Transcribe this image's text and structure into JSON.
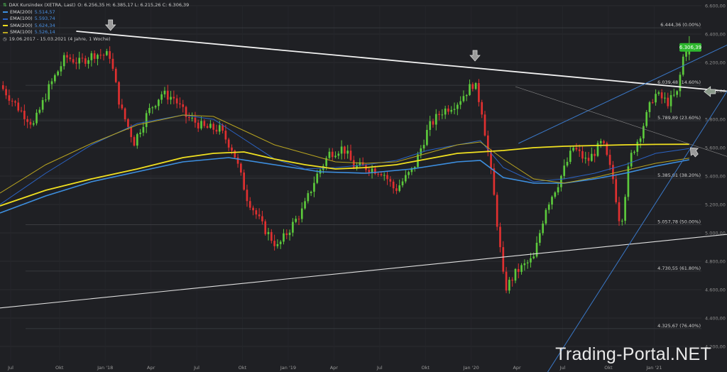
{
  "header": {
    "instrument": "DAX Kursindex (XETRA, Last)",
    "ohlc": "O: 6.256,35  H: 6.385,17  L: 6.215,26  C: 6.306,39",
    "range": "19.06.2017 - 15.03.2021 (4 Jahre, 1 Woche)"
  },
  "legend": [
    {
      "label": "EMA(200)",
      "value": "5.514,57",
      "color": "#3d8fe0"
    },
    {
      "label": "EMA(100)",
      "value": "5.593,74",
      "color": "#2b63c4"
    },
    {
      "label": "SMA(200)",
      "value": "5.624,34",
      "color": "#f0e020"
    },
    {
      "label": "SMA(100)",
      "value": "5.526,14",
      "color": "#b8a420"
    }
  ],
  "watermark": "Trading-Portal.NET",
  "colors": {
    "background": "#1f2024",
    "up": "#5cc93c",
    "down": "#e03030",
    "last_price_badge": "#2eb82e"
  },
  "chart_data": {
    "type": "candlestick",
    "title": "DAX Kursindex (XETRA, Last)",
    "ylim": [
      4100,
      6600
    ],
    "y_ticks": [
      6600,
      6400,
      6200,
      6000,
      5800,
      5600,
      5400,
      5200,
      5000,
      4800,
      4600,
      4400,
      4200
    ],
    "y_tick_labels": [
      "6.600,00",
      "6.400,00",
      "6.200,00",
      "6.000,00",
      "5.800,00",
      "5.600,00",
      "5.400,00",
      "5.200,00",
      "5.000,00",
      "4.800,00",
      "4.600,00",
      "4.400,00",
      "4.200,00"
    ],
    "x_ticks": [
      {
        "label": "Jul",
        "t": 0.7
      },
      {
        "label": "Okt",
        "t": 3.9
      },
      {
        "label": "Jan '18",
        "t": 6.9
      },
      {
        "label": "Apr",
        "t": 9.9
      },
      {
        "label": "Jul",
        "t": 12.9
      },
      {
        "label": "Okt",
        "t": 15.9
      },
      {
        "label": "Jan '19",
        "t": 18.9
      },
      {
        "label": "Apr",
        "t": 21.9
      },
      {
        "label": "Jul",
        "t": 24.9
      },
      {
        "label": "Okt",
        "t": 27.9
      },
      {
        "label": "Jan '20",
        "t": 30.9
      },
      {
        "label": "Apr",
        "t": 33.9
      },
      {
        "label": "Jul",
        "t": 36.9
      },
      {
        "label": "Okt",
        "t": 39.9
      },
      {
        "label": "Jan '21",
        "t": 42.9
      }
    ],
    "x_range": [
      0,
      46
    ],
    "anchors": [
      [
        0,
        6040
      ],
      [
        1.2,
        5880
      ],
      [
        2.2,
        5760
      ],
      [
        3.2,
        6020
      ],
      [
        4.3,
        6240
      ],
      [
        5.2,
        6200
      ],
      [
        6.2,
        6260
      ],
      [
        7.2,
        6250
      ],
      [
        7.9,
        5880
      ],
      [
        8.8,
        5640
      ],
      [
        9.7,
        5850
      ],
      [
        10.6,
        5980
      ],
      [
        11.4,
        5950
      ],
      [
        12.2,
        5820
      ],
      [
        13.4,
        5740
      ],
      [
        14.4,
        5730
      ],
      [
        15.3,
        5580
      ],
      [
        16.2,
        5250
      ],
      [
        17.2,
        5050
      ],
      [
        18.2,
        4900
      ],
      [
        19.2,
        5060
      ],
      [
        19.9,
        5170
      ],
      [
        20.7,
        5390
      ],
      [
        21.6,
        5560
      ],
      [
        22.5,
        5600
      ],
      [
        23.2,
        5470
      ],
      [
        24.1,
        5460
      ],
      [
        25.1,
        5430
      ],
      [
        25.9,
        5300
      ],
      [
        27.1,
        5450
      ],
      [
        28.1,
        5740
      ],
      [
        28.9,
        5850
      ],
      [
        30.0,
        5920
      ],
      [
        31.1,
        6060
      ],
      [
        31.6,
        5860
      ],
      [
        32.3,
        5350
      ],
      [
        33.1,
        4600
      ],
      [
        33.9,
        4730
      ],
      [
        35.0,
        4820
      ],
      [
        35.8,
        5180
      ],
      [
        36.6,
        5350
      ],
      [
        37.6,
        5600
      ],
      [
        38.5,
        5500
      ],
      [
        39.5,
        5640
      ],
      [
        40.2,
        5380
      ],
      [
        40.7,
        5040
      ],
      [
        41.3,
        5520
      ],
      [
        42.0,
        5700
      ],
      [
        42.9,
        5980
      ],
      [
        43.8,
        5920
      ],
      [
        44.4,
        5980
      ],
      [
        44.9,
        6300
      ],
      [
        45.2,
        6310
      ]
    ],
    "close": 6306.39,
    "open": 6256.35,
    "high": 6385.17,
    "low": 6215.26,
    "series": [
      {
        "name": "EMA(200)",
        "color": "#3d8fe0",
        "width": 1.6,
        "value": 5514.57,
        "points": [
          [
            0,
            5140
          ],
          [
            3,
            5260
          ],
          [
            6,
            5360
          ],
          [
            9,
            5430
          ],
          [
            12,
            5500
          ],
          [
            15,
            5530
          ],
          [
            18,
            5480
          ],
          [
            21,
            5430
          ],
          [
            24,
            5420
          ],
          [
            27,
            5450
          ],
          [
            30,
            5500
          ],
          [
            31.5,
            5510
          ],
          [
            33,
            5390
          ],
          [
            35,
            5350
          ],
          [
            37,
            5350
          ],
          [
            39,
            5380
          ],
          [
            41,
            5420
          ],
          [
            43,
            5470
          ],
          [
            45.2,
            5515
          ]
        ]
      },
      {
        "name": "EMA(100)",
        "color": "#2b63c4",
        "width": 1.0,
        "value": 5593.74,
        "points": [
          [
            0,
            5200
          ],
          [
            3,
            5420
          ],
          [
            6,
            5620
          ],
          [
            9,
            5770
          ],
          [
            12,
            5830
          ],
          [
            14,
            5800
          ],
          [
            16,
            5660
          ],
          [
            18,
            5520
          ],
          [
            20,
            5450
          ],
          [
            22,
            5460
          ],
          [
            24,
            5480
          ],
          [
            26,
            5510
          ],
          [
            28,
            5580
          ],
          [
            30,
            5620
          ],
          [
            31.5,
            5650
          ],
          [
            33,
            5460
          ],
          [
            35,
            5360
          ],
          [
            37,
            5380
          ],
          [
            39,
            5420
          ],
          [
            41,
            5480
          ],
          [
            43,
            5560
          ],
          [
            45.2,
            5594
          ]
        ]
      },
      {
        "name": "SMA(200)",
        "color": "#f0e020",
        "width": 1.8,
        "value": 5624.34,
        "points": [
          [
            0,
            5190
          ],
          [
            3,
            5300
          ],
          [
            6,
            5380
          ],
          [
            9,
            5450
          ],
          [
            12,
            5530
          ],
          [
            14,
            5560
          ],
          [
            16,
            5570
          ],
          [
            18,
            5520
          ],
          [
            20,
            5480
          ],
          [
            22,
            5450
          ],
          [
            24,
            5460
          ],
          [
            26,
            5480
          ],
          [
            28,
            5520
          ],
          [
            30,
            5560
          ],
          [
            31.5,
            5570
          ],
          [
            33,
            5580
          ],
          [
            35,
            5600
          ],
          [
            37,
            5610
          ],
          [
            39,
            5615
          ],
          [
            41,
            5620
          ],
          [
            43,
            5623
          ],
          [
            45.2,
            5624
          ]
        ]
      },
      {
        "name": "SMA(100)",
        "color": "#b8a420",
        "width": 1.0,
        "value": 5526.14,
        "points": [
          [
            0,
            5280
          ],
          [
            3,
            5480
          ],
          [
            6,
            5630
          ],
          [
            9,
            5760
          ],
          [
            12,
            5830
          ],
          [
            14,
            5820
          ],
          [
            16,
            5720
          ],
          [
            18,
            5620
          ],
          [
            20,
            5560
          ],
          [
            22,
            5500
          ],
          [
            24,
            5490
          ],
          [
            26,
            5500
          ],
          [
            28,
            5560
          ],
          [
            30,
            5620
          ],
          [
            31.5,
            5640
          ],
          [
            33,
            5520
          ],
          [
            35,
            5380
          ],
          [
            37,
            5350
          ],
          [
            39,
            5390
          ],
          [
            41,
            5440
          ],
          [
            43,
            5490
          ],
          [
            45.2,
            5526
          ]
        ]
      }
    ],
    "fib_levels": [
      {
        "value": 6444.36,
        "label": "6.444,36 (0.00%)"
      },
      {
        "value": 6039.48,
        "label": "6.039,48 (14.60%)"
      },
      {
        "value": 5789.89,
        "label": "5.789,89 (23.60%)"
      },
      {
        "value": 5385.01,
        "label": "5.385,01 (38.20%)"
      },
      {
        "value": 5057.78,
        "label": "5.057,78 (50.00%)"
      },
      {
        "value": 4730.55,
        "label": "4.730,55 (61.80%)"
      },
      {
        "value": 4325.67,
        "label": "4.325,67 (76.40%)"
      }
    ],
    "last_price": {
      "value": 6306.39,
      "label": "6.306,39"
    },
    "trendlines": [
      {
        "name": "resistance-trendline",
        "from": [
          5.0,
          6420
        ],
        "to": [
          54.5,
          5930
        ],
        "color": "#f2f2f2",
        "width": 1.8
      },
      {
        "name": "long-term-support-trendline",
        "from": [
          -1.0,
          4460
        ],
        "to": [
          59.7,
          5120
        ],
        "color": "#e0e0e0",
        "width": 1.1
      },
      {
        "name": "upper-channel-line",
        "from": [
          34.0,
          5630
        ],
        "to": [
          49.8,
          6430
        ],
        "color": "#3a78c8",
        "width": 1.0
      },
      {
        "name": "recovery-trendline",
        "from": [
          35.8,
          4000
        ],
        "to": [
          49.0,
          6220
        ],
        "color": "#3a78c8",
        "width": 1.0
      },
      {
        "name": "declining-trendline",
        "from": [
          33.8,
          6030
        ],
        "to": [
          59.5,
          5120
        ],
        "color": "#8a8a8a",
        "width": 0.6
      }
    ],
    "markers": [
      {
        "name": "top-arrow-2018",
        "t": 7.25,
        "value": 6455,
        "dir": "down"
      },
      {
        "name": "top-arrow-2020",
        "t": 31.15,
        "value": 6240,
        "dir": "down"
      },
      {
        "name": "resistance-test-arrow",
        "t": 46.5,
        "value": 5995,
        "dir": "left"
      },
      {
        "name": "sma-support-arrow",
        "t": 45.5,
        "value": 5575,
        "dir": "up-left"
      }
    ]
  }
}
